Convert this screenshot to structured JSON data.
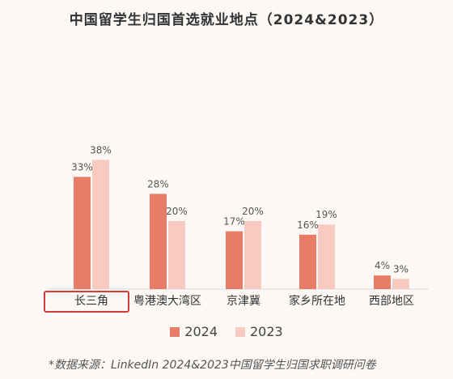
{
  "title": "中国留学生归国首选就业地点（2024&2023）",
  "source": "*数据来源：LinkedIn 2024&2023中国留学生归国求职调研问卷",
  "colors": {
    "s2024": "#e77b66",
    "s2023": "#f9cabf",
    "highlight": "#d73b36"
  },
  "chart_data": {
    "type": "bar",
    "title": "中国留学生归国首选就业地点（2024&2023）",
    "categories": [
      "长三角",
      "粤港澳大湾区",
      "京津冀",
      "家乡所在地",
      "西部地区"
    ],
    "series": [
      {
        "name": "2024",
        "values": [
          33,
          28,
          17,
          16,
          4
        ],
        "labels": [
          "33%",
          "28%",
          "17%",
          "16%",
          "4%"
        ]
      },
      {
        "name": "2023",
        "values": [
          38,
          20,
          20,
          19,
          3
        ],
        "labels": [
          "38%",
          "20%",
          "20%",
          "19%",
          "3%"
        ]
      }
    ],
    "highlighted_category": "长三角",
    "legend_position": "bottom",
    "grid": false
  }
}
